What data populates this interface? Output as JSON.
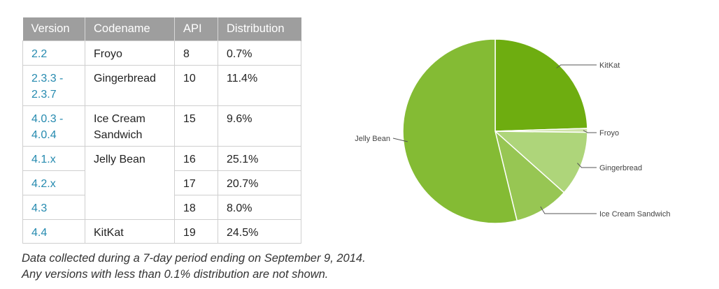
{
  "table": {
    "headers": [
      "Version",
      "Codename",
      "API",
      "Distribution"
    ],
    "rows": [
      {
        "version": "2.2",
        "codename": "Froyo",
        "api": "8",
        "distribution": "0.7%"
      },
      {
        "version": "2.3.3 -\n2.3.7",
        "codename": "Gingerbread",
        "api": "10",
        "distribution": "11.4%"
      },
      {
        "version": "4.0.3 -\n4.0.4",
        "codename": "Ice Cream\nSandwich",
        "api": "15",
        "distribution": "9.6%"
      },
      {
        "version": "4.1.x",
        "codename": "Jelly Bean",
        "api": "16",
        "distribution": "25.1%"
      },
      {
        "version": "4.2.x",
        "codename": "",
        "api": "17",
        "distribution": "20.7%"
      },
      {
        "version": "4.3",
        "codename": "",
        "api": "18",
        "distribution": "8.0%"
      },
      {
        "version": "4.4",
        "codename": "KitKat",
        "api": "19",
        "distribution": "24.5%"
      }
    ]
  },
  "footnote": {
    "line1": "Data collected during a 7-day period ending on September 9, 2014.",
    "line2": "Any versions with less than 0.1% distribution are not shown."
  },
  "chart_data": {
    "type": "pie",
    "title": "",
    "slices": [
      {
        "label": "KitKat",
        "value": 24.5,
        "color": "#6ead10"
      },
      {
        "label": "Froyo",
        "value": 0.7,
        "color": "#cfe3a8"
      },
      {
        "label": "Gingerbread",
        "value": 11.4,
        "color": "#aed57a"
      },
      {
        "label": "Ice Cream Sandwich",
        "value": 9.6,
        "color": "#97c653"
      },
      {
        "label": "Jelly Bean",
        "value": 53.8,
        "color": "#84bb34"
      }
    ],
    "start_angle_deg": 0,
    "direction": "clockwise",
    "legend": "leader-line labels"
  }
}
